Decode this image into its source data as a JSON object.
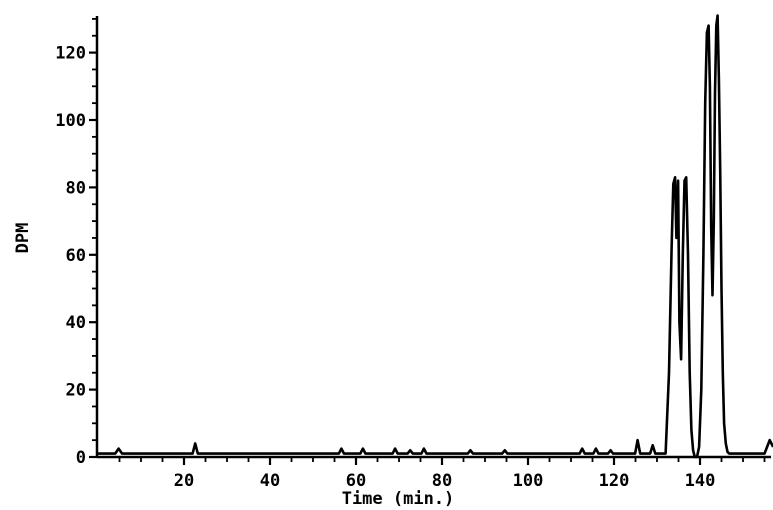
{
  "chart_data": {
    "type": "line",
    "xlabel": "Time (min.)",
    "ylabel": "DPM",
    "xlim": [
      0,
      157
    ],
    "ylim": [
      0,
      132
    ],
    "x_ticks": [
      20,
      40,
      60,
      80,
      100,
      120,
      140
    ],
    "y_ticks": [
      0,
      20,
      40,
      60,
      80,
      100,
      120
    ],
    "x_tick_labels": [
      "20",
      "40",
      "60",
      "80",
      "100",
      "120",
      "140"
    ],
    "y_tick_labels": [
      "0",
      "20",
      "40",
      "60",
      "80",
      "100",
      "120"
    ],
    "grid": false,
    "legend": "none",
    "colors": {
      "line": "#000000",
      "background": "#ffffff"
    },
    "series": [
      {
        "x": [
          0,
          4,
          4.8,
          5.6,
          22,
          22.6,
          23.2,
          56,
          56.6,
          57.2,
          61,
          61.6,
          62.2,
          68.5,
          69.1,
          69.7,
          72,
          72.6,
          73.2,
          75.2,
          75.8,
          76.4,
          86,
          86.6,
          87.2,
          94,
          94.6,
          95.2,
          112,
          112.6,
          113.2,
          115.2,
          115.8,
          116.4,
          118.6,
          119.2,
          119.8,
          124.9,
          125.5,
          126.1,
          128.4,
          129,
          129.6,
          132,
          132.8,
          133.4,
          133.8,
          134.2,
          134.5,
          134.9,
          135.2,
          135.6,
          136,
          136.4,
          136.8,
          137.2,
          137.6,
          138,
          138.4,
          138.8,
          139.3,
          139.8,
          140.3,
          140.8,
          141.2,
          141.6,
          142,
          142.3,
          142.6,
          142.9,
          143.2,
          143.5,
          143.8,
          144.1,
          144.4,
          144.7,
          145,
          145.3,
          145.6,
          146,
          146.4,
          146.8,
          147.3,
          148,
          155,
          156.2,
          157
        ],
        "y": [
          1,
          1,
          2.5,
          1,
          1,
          4,
          1,
          1,
          2.5,
          1,
          1,
          2.5,
          1,
          1,
          2.5,
          1,
          1,
          2,
          1,
          1,
          2.5,
          1,
          1,
          2,
          1,
          1,
          2,
          1,
          1,
          2.5,
          1,
          1,
          2.5,
          1,
          1,
          2,
          1,
          1,
          5,
          1,
          1,
          3.5,
          1,
          1,
          25,
          62,
          81,
          83,
          65,
          82,
          40,
          29,
          60,
          82,
          83,
          60,
          25,
          8,
          2,
          0,
          0,
          3,
          20,
          60,
          105,
          126,
          128,
          110,
          68,
          48,
          70,
          108,
          128,
          131,
          112,
          85,
          50,
          25,
          10,
          4,
          1.5,
          1,
          1,
          1,
          1,
          5,
          3
        ]
      }
    ]
  }
}
